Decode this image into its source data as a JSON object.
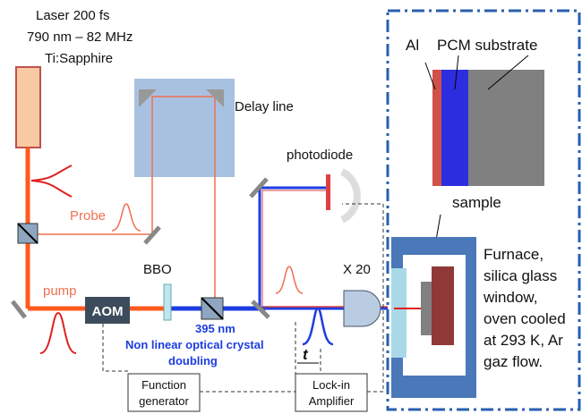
{
  "laser": {
    "lines": [
      "Laser 200 fs",
      "790 nm – 82 MHz",
      "Ti:Sapphire"
    ]
  },
  "delay_line": "Delay line",
  "photodiode": "photodiode",
  "probe": "Probe",
  "pump": "pump",
  "bbo": "BBO",
  "aom": "AOM",
  "wavelength": "395 nm",
  "crystal": {
    "lines": [
      "Non linear optical crystal",
      "doubling"
    ]
  },
  "objective": "X 20",
  "function_generator": {
    "lines": [
      "Function",
      "generator"
    ]
  },
  "lock_in": {
    "lines": [
      "Lock-in",
      "Amplifier"
    ]
  },
  "delay_symbol": "t",
  "sample_panel": {
    "al": "Al",
    "pcm": "PCM substrate",
    "sample": "sample"
  },
  "furnace": {
    "lines": [
      "Furnace,",
      "silica glass",
      "window,",
      "oven cooled",
      "at 293 K, Ar",
      "gaz flow."
    ]
  }
}
